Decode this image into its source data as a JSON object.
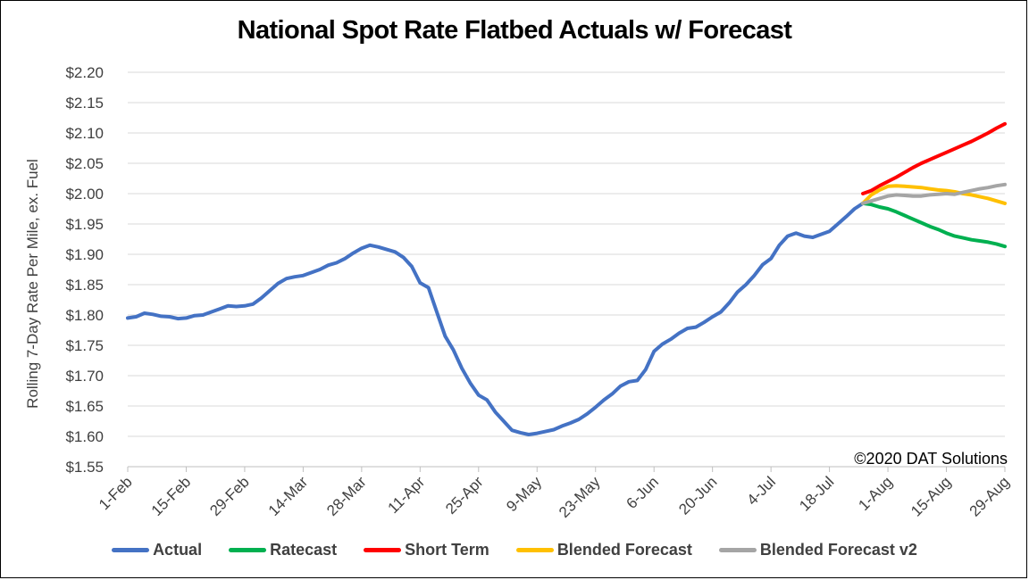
{
  "chart_data": {
    "type": "line",
    "title": "National Spot Rate Flatbed Actuals w/ Forecast",
    "ylabel": "Rolling 7-Day Rate Per Mile, ex. Fuel",
    "xlabel": "",
    "ylim": [
      1.55,
      2.2
    ],
    "y_ticks": [
      "$1.55",
      "$1.60",
      "$1.65",
      "$1.70",
      "$1.75",
      "$1.80",
      "$1.85",
      "$1.90",
      "$1.95",
      "$2.00",
      "$2.05",
      "$2.10",
      "$2.15",
      "$2.20"
    ],
    "x_ticks": [
      "1-Feb",
      "15-Feb",
      "29-Feb",
      "14-Mar",
      "28-Mar",
      "11-Apr",
      "25-Apr",
      "9-May",
      "23-May",
      "6-Jun",
      "20-Jun",
      "4-Jul",
      "18-Jul",
      "1-Aug",
      "15-Aug",
      "29-Aug"
    ],
    "x_tick_day": [
      0,
      14,
      28,
      42,
      56,
      70,
      84,
      98,
      112,
      126,
      140,
      154,
      168,
      182,
      196,
      210
    ],
    "x_range": [
      0,
      210
    ],
    "grid": "horizontal",
    "legend_position": "bottom",
    "annotation": "©2020 DAT Solutions",
    "series": [
      {
        "name": "Actual",
        "color": "#4472C4",
        "x": [
          0,
          2,
          4,
          6,
          8,
          10,
          12,
          14,
          16,
          18,
          20,
          22,
          24,
          26,
          28,
          30,
          32,
          34,
          36,
          38,
          40,
          42,
          44,
          46,
          48,
          50,
          52,
          54,
          56,
          58,
          60,
          62,
          64,
          66,
          68,
          70,
          72,
          74,
          76,
          78,
          80,
          82,
          84,
          86,
          88,
          90,
          92,
          94,
          96,
          98,
          100,
          102,
          104,
          106,
          108,
          110,
          112,
          114,
          116,
          118,
          120,
          122,
          124,
          126,
          128,
          130,
          132,
          134,
          136,
          138,
          140,
          142,
          144,
          146,
          148,
          150,
          152,
          154,
          156,
          158,
          160,
          162,
          164,
          166,
          168,
          170,
          172,
          174,
          176
        ],
        "y": [
          1.795,
          1.797,
          1.803,
          1.801,
          1.798,
          1.797,
          1.794,
          1.795,
          1.799,
          1.8,
          1.805,
          1.81,
          1.815,
          1.814,
          1.815,
          1.818,
          1.828,
          1.84,
          1.852,
          1.86,
          1.863,
          1.865,
          1.87,
          1.875,
          1.882,
          1.886,
          1.893,
          1.902,
          1.91,
          1.915,
          1.912,
          1.908,
          1.904,
          1.895,
          1.88,
          1.853,
          1.845,
          1.805,
          1.765,
          1.742,
          1.712,
          1.688,
          1.668,
          1.66,
          1.64,
          1.625,
          1.61,
          1.606,
          1.603,
          1.605,
          1.608,
          1.611,
          1.617,
          1.622,
          1.628,
          1.637,
          1.648,
          1.66,
          1.67,
          1.683,
          1.69,
          1.692,
          1.71,
          1.74,
          1.752,
          1.76,
          1.77,
          1.778,
          1.78,
          1.788,
          1.797,
          1.805,
          1.82,
          1.838,
          1.85,
          1.865,
          1.883,
          1.893,
          1.915,
          1.93,
          1.935,
          1.93,
          1.928,
          1.933,
          1.938,
          1.95,
          1.962,
          1.975,
          1.984
        ]
      },
      {
        "name": "Ratecast",
        "color": "#00B050",
        "x": [
          176,
          178,
          180,
          182,
          184,
          186,
          188,
          190,
          192,
          194,
          196,
          198,
          200,
          202,
          204,
          206,
          208,
          210
        ],
        "y": [
          1.984,
          1.982,
          1.978,
          1.975,
          1.97,
          1.964,
          1.958,
          1.952,
          1.946,
          1.941,
          1.935,
          1.93,
          1.927,
          1.924,
          1.922,
          1.92,
          1.917,
          1.913
        ]
      },
      {
        "name": "Short Term",
        "color": "#FF0000",
        "x": [
          176,
          178,
          180,
          182,
          184,
          186,
          188,
          190,
          192,
          194,
          196,
          198,
          200,
          202,
          204,
          206,
          208,
          210
        ],
        "y": [
          2.0,
          2.005,
          2.013,
          2.02,
          2.027,
          2.035,
          2.043,
          2.05,
          2.056,
          2.062,
          2.068,
          2.074,
          2.08,
          2.086,
          2.093,
          2.1,
          2.108,
          2.115
        ]
      },
      {
        "name": "Blended Forecast",
        "color": "#FFC000",
        "x": [
          176,
          178,
          180,
          182,
          184,
          186,
          188,
          190,
          192,
          194,
          196,
          198,
          200,
          202,
          204,
          206,
          208,
          210
        ],
        "y": [
          1.984,
          1.998,
          2.006,
          2.012,
          2.013,
          2.012,
          2.011,
          2.01,
          2.008,
          2.006,
          2.005,
          2.003,
          2.0,
          1.998,
          1.995,
          1.992,
          1.988,
          1.984
        ]
      },
      {
        "name": "Blended Forecast v2",
        "color": "#A5A5A5",
        "x": [
          176,
          178,
          180,
          182,
          184,
          186,
          188,
          190,
          192,
          194,
          196,
          198,
          200,
          202,
          204,
          206,
          208,
          210
        ],
        "y": [
          1.984,
          1.988,
          1.992,
          1.996,
          1.998,
          1.997,
          1.996,
          1.996,
          1.998,
          1.999,
          2.0,
          1.999,
          2.002,
          2.005,
          2.008,
          2.01,
          2.013,
          2.015
        ]
      }
    ]
  }
}
